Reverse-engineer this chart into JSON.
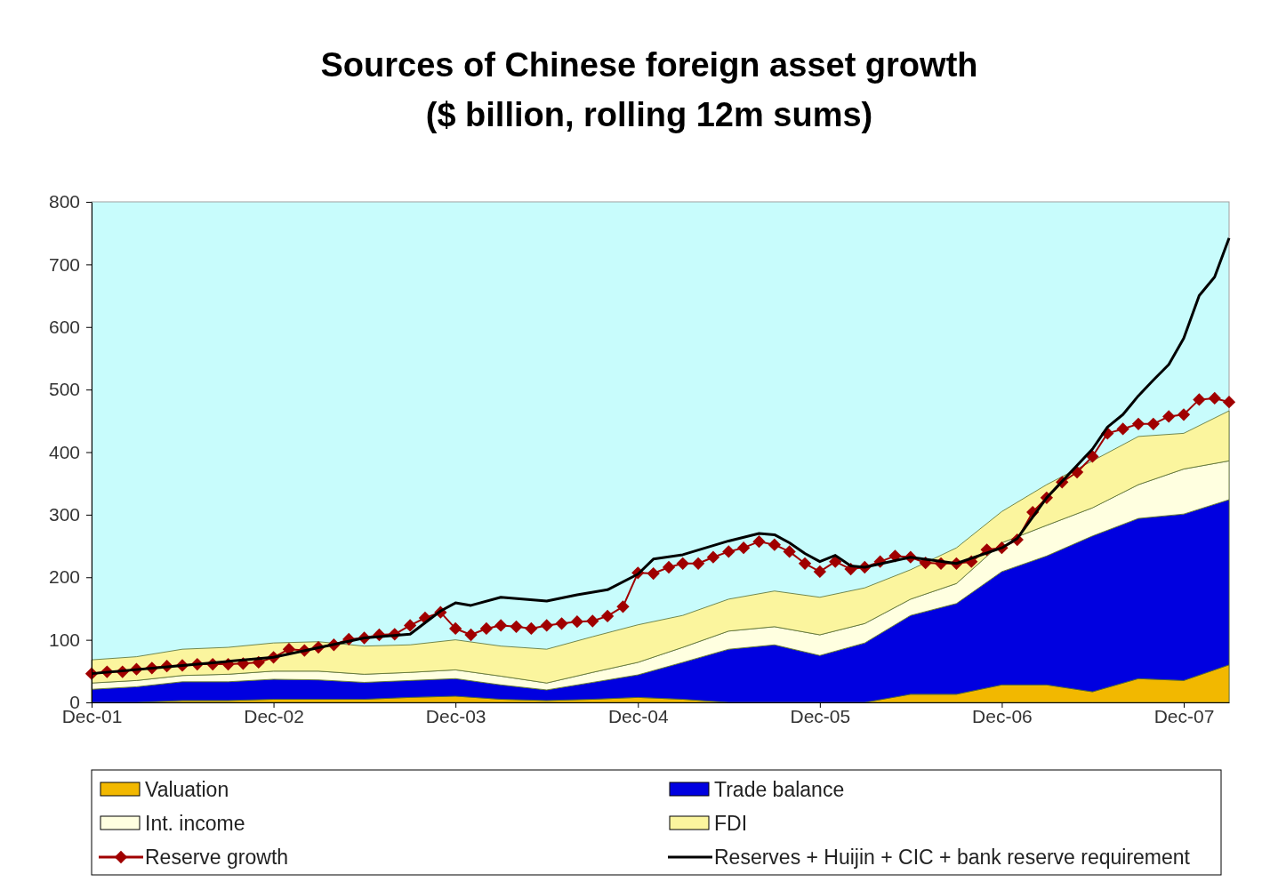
{
  "chart_data": {
    "type": "area",
    "title": "Sources of Chinese foreign asset growth",
    "subtitle": "($ billion, rolling 12m sums)",
    "x": [
      "2001-12",
      "2002-03",
      "2002-06",
      "2002-09",
      "2002-12",
      "2003-03",
      "2003-06",
      "2003-09",
      "2003-12",
      "2004-03",
      "2004-06",
      "2004-09",
      "2004-12",
      "2005-03",
      "2005-06",
      "2005-09",
      "2005-12",
      "2006-03",
      "2006-06",
      "2006-09",
      "2006-12",
      "2007-03",
      "2007-06",
      "2007-09",
      "2007-12",
      "2008-03"
    ],
    "stacked": true,
    "series": [
      {
        "name": "Valuation",
        "color": "#f2b800",
        "values": [
          0,
          0,
          3,
          3,
          5,
          5,
          5,
          8,
          10,
          5,
          3,
          5,
          8,
          5,
          0,
          0,
          0,
          0,
          13,
          13,
          28,
          28,
          17,
          38,
          35,
          60
        ]
      },
      {
        "name": "Trade balance",
        "color": "#0000e0",
        "values": [
          21,
          25,
          30,
          30,
          32,
          31,
          27,
          27,
          28,
          23,
          17,
          27,
          36,
          59,
          85,
          92,
          75,
          95,
          126,
          145,
          181,
          206,
          249,
          256,
          266,
          264
        ]
      },
      {
        "name": "Int. income",
        "color": "#ffffe0",
        "values": [
          10,
          10,
          10,
          12,
          13,
          14,
          13,
          13,
          14,
          14,
          11,
          16,
          20,
          24,
          29,
          29,
          33,
          31,
          26,
          32,
          46,
          49,
          45,
          54,
          72,
          62
        ]
      },
      {
        "name": "FDI",
        "color": "#fbf59e",
        "values": [
          37,
          38,
          42,
          43,
          45,
          47,
          45,
          44,
          48,
          48,
          54,
          57,
          60,
          51,
          51,
          57,
          60,
          57,
          47,
          57,
          50,
          65,
          75,
          77,
          57,
          80
        ]
      },
      {
        "name": "Reserve growth",
        "type": "line",
        "color": "#a00000",
        "marker": "diamond",
        "x": [
          "2001-12",
          "2002-01",
          "2002-02",
          "2002-03",
          "2002-04",
          "2002-05",
          "2002-06",
          "2002-07",
          "2002-08",
          "2002-09",
          "2002-10",
          "2002-11",
          "2002-12",
          "2003-01",
          "2003-02",
          "2003-03",
          "2003-04",
          "2003-05",
          "2003-06",
          "2003-07",
          "2003-08",
          "2003-09",
          "2003-10",
          "2003-11",
          "2003-12",
          "2004-01",
          "2004-02",
          "2004-03",
          "2004-04",
          "2004-05",
          "2004-06",
          "2004-07",
          "2004-08",
          "2004-09",
          "2004-10",
          "2004-11",
          "2004-12",
          "2005-01",
          "2005-02",
          "2005-03",
          "2005-04",
          "2005-05",
          "2005-06",
          "2005-07",
          "2005-08",
          "2005-09",
          "2005-10",
          "2005-11",
          "2005-12",
          "2006-01",
          "2006-02",
          "2006-03",
          "2006-04",
          "2006-05",
          "2006-06",
          "2006-07",
          "2006-08",
          "2006-09",
          "2006-10",
          "2006-11",
          "2006-12",
          "2007-01",
          "2007-02",
          "2007-03",
          "2007-04",
          "2007-05",
          "2007-06",
          "2007-07",
          "2007-08",
          "2007-09",
          "2007-10",
          "2007-11",
          "2007-12",
          "2008-01",
          "2008-02",
          "2008-03"
        ],
        "values": [
          46,
          49,
          49,
          53,
          55,
          58,
          59,
          61,
          61,
          61,
          62,
          64,
          72,
          85,
          83,
          88,
          92,
          101,
          103,
          108,
          109,
          123,
          135,
          144,
          118,
          108,
          118,
          123,
          121,
          118,
          123,
          126,
          129,
          130,
          138,
          153,
          207,
          206,
          216,
          222,
          222,
          232,
          241,
          247,
          257,
          252,
          241,
          222,
          209,
          225,
          213,
          216,
          225,
          234,
          232,
          223,
          222,
          222,
          225,
          244,
          247,
          260,
          304,
          327,
          352,
          368,
          393,
          430,
          437,
          445,
          445,
          457,
          460,
          484,
          486,
          480
        ]
      },
      {
        "name": "Reserves + Huijin + CIC + bank reserve requirement",
        "type": "line",
        "color": "#000000",
        "marker": "none",
        "x": [
          "2001-12",
          "2002-06",
          "2002-12",
          "2003-06",
          "2003-09",
          "2003-11",
          "2003-12",
          "2004-01",
          "2004-03",
          "2004-06",
          "2004-08",
          "2004-10",
          "2004-12",
          "2005-01",
          "2005-03",
          "2005-06",
          "2005-08",
          "2005-09",
          "2005-10",
          "2005-11",
          "2005-12",
          "2006-01",
          "2006-02",
          "2006-03",
          "2006-06",
          "2006-09",
          "2006-12",
          "2007-01",
          "2007-03",
          "2007-06",
          "2007-07",
          "2007-08",
          "2007-09",
          "2007-10",
          "2007-11",
          "2007-12",
          "2008-01",
          "2008-02",
          "2008-03"
        ],
        "values": [
          46,
          59,
          72,
          103,
          109,
          146,
          159,
          155,
          168,
          162,
          172,
          180,
          205,
          229,
          236,
          258,
          270,
          268,
          255,
          238,
          225,
          235,
          218,
          216,
          232,
          222,
          247,
          262,
          327,
          405,
          440,
          460,
          490,
          515,
          540,
          582,
          650,
          680,
          742
        ]
      }
    ],
    "xlim": [
      "2001-12",
      "2008-03"
    ],
    "xticks": [
      {
        "value": "2001-12",
        "label": "Dec-01"
      },
      {
        "value": "2002-12",
        "label": "Dec-02"
      },
      {
        "value": "2003-12",
        "label": "Dec-03"
      },
      {
        "value": "2004-12",
        "label": "Dec-04"
      },
      {
        "value": "2005-12",
        "label": "Dec-05"
      },
      {
        "value": "2006-12",
        "label": "Dec-06"
      },
      {
        "value": "2007-12",
        "label": "Dec-07"
      }
    ],
    "ylim": [
      0,
      800
    ],
    "yticks": [
      0,
      100,
      200,
      300,
      400,
      500,
      600,
      700,
      800
    ],
    "grid": false,
    "legend": "bottom",
    "line_style": "solid"
  }
}
